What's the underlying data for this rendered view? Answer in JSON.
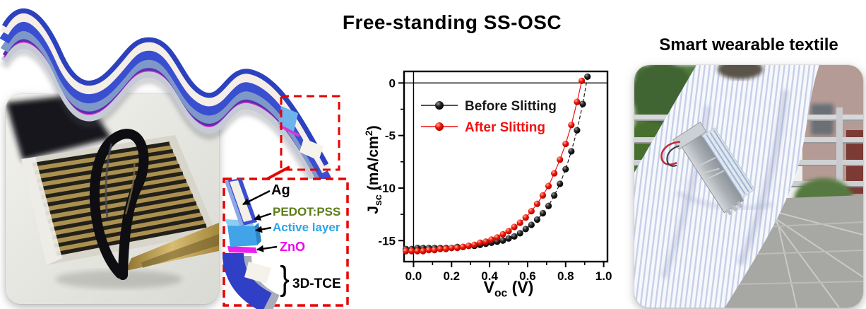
{
  "figure": {
    "title": "Free-standing SS-OSC",
    "right_panel_heading": "Smart wearable textile"
  },
  "inset": {
    "box_color": "#e80000",
    "brace": "}",
    "layers": [
      {
        "label": "Ag",
        "color": "#000000"
      },
      {
        "label": "PEDOT:PSS",
        "color": "#5c7c19"
      },
      {
        "label": "Active layer",
        "color": "#2ba4e6"
      },
      {
        "label": "ZnO",
        "color": "#ee00ee"
      },
      {
        "label": "3D-TCE",
        "color": "#000000"
      }
    ]
  },
  "chart_data": {
    "type": "scatter",
    "title": "",
    "xlabel": {
      "symbol": "V",
      "sub": "oc",
      "unit": " (V)"
    },
    "ylabel": {
      "symbol": "J",
      "sub": "sc",
      "unit_prefix": " (mA/cm",
      "sup": "2",
      "unit_suffix": ")"
    },
    "xlim": [
      -0.05,
      1.02
    ],
    "ylim": [
      -17.0,
      1.1
    ],
    "xticks": [
      0.0,
      0.2,
      0.4,
      0.6,
      0.8,
      1.0
    ],
    "yticks": [
      0,
      -5,
      -10,
      -15
    ],
    "grid": false,
    "legend_position": "top-left",
    "series": [
      {
        "name": "Before Slitting",
        "color": "#1a1a1a",
        "x": [
          -0.04,
          -0.01,
          0.02,
          0.05,
          0.08,
          0.11,
          0.14,
          0.17,
          0.2,
          0.23,
          0.26,
          0.29,
          0.32,
          0.35,
          0.38,
          0.41,
          0.44,
          0.47,
          0.5,
          0.53,
          0.56,
          0.59,
          0.62,
          0.65,
          0.68,
          0.71,
          0.74,
          0.77,
          0.8,
          0.83,
          0.86,
          0.89,
          0.915
        ],
        "y": [
          -15.8,
          -15.8,
          -15.7,
          -15.7,
          -15.7,
          -15.7,
          -15.7,
          -15.7,
          -15.7,
          -15.6,
          -15.6,
          -15.5,
          -15.5,
          -15.4,
          -15.3,
          -15.2,
          -15.1,
          -15.0,
          -14.8,
          -14.6,
          -14.3,
          -13.9,
          -13.5,
          -13.0,
          -12.4,
          -11.7,
          -10.7,
          -9.6,
          -8.2,
          -6.5,
          -4.5,
          -2.0,
          0.6
        ]
      },
      {
        "name": "After Slitting",
        "color": "#ee1111",
        "x": [
          -0.04,
          -0.01,
          0.02,
          0.05,
          0.08,
          0.11,
          0.14,
          0.17,
          0.2,
          0.23,
          0.26,
          0.29,
          0.32,
          0.35,
          0.38,
          0.41,
          0.44,
          0.47,
          0.5,
          0.53,
          0.56,
          0.59,
          0.62,
          0.65,
          0.68,
          0.71,
          0.74,
          0.77,
          0.8,
          0.83,
          0.86,
          0.885
        ],
        "y": [
          -16.0,
          -16.0,
          -16.0,
          -16.0,
          -15.9,
          -15.9,
          -15.8,
          -15.8,
          -15.7,
          -15.7,
          -15.6,
          -15.5,
          -15.4,
          -15.2,
          -15.1,
          -14.9,
          -14.7,
          -14.4,
          -14.1,
          -13.7,
          -13.3,
          -12.8,
          -12.2,
          -11.5,
          -10.7,
          -9.8,
          -8.6,
          -7.3,
          -5.8,
          -4.0,
          -1.8,
          0.2
        ]
      }
    ]
  }
}
